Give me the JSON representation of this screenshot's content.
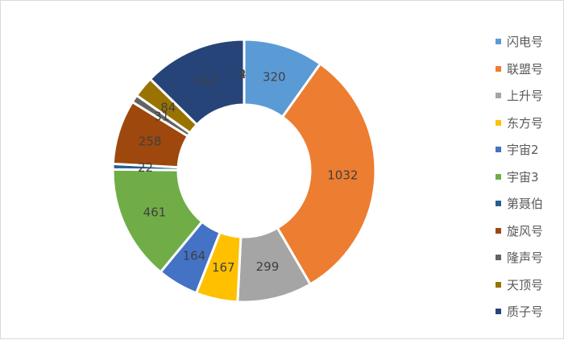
{
  "chart_data": {
    "type": "pie",
    "variant": "donut",
    "title": "",
    "legend_position": "right",
    "categories": [
      "闪电号",
      "联盟号",
      "上升号",
      "东方号",
      "宇宙2",
      "宇宙3",
      "第聂伯",
      "旋风号",
      "隆声号",
      "天顶号",
      "质子号"
    ],
    "values": [
      320,
      1032,
      299,
      167,
      164,
      461,
      22,
      258,
      31,
      84,
      412
    ],
    "extra_labels": [
      "4",
      "2"
    ],
    "colors": [
      "#5b9bd5",
      "#ed7d31",
      "#a5a5a5",
      "#ffc000",
      "#4472c4",
      "#70ad47",
      "#255e91",
      "#9e480e",
      "#636363",
      "#997300",
      "#264478"
    ]
  }
}
